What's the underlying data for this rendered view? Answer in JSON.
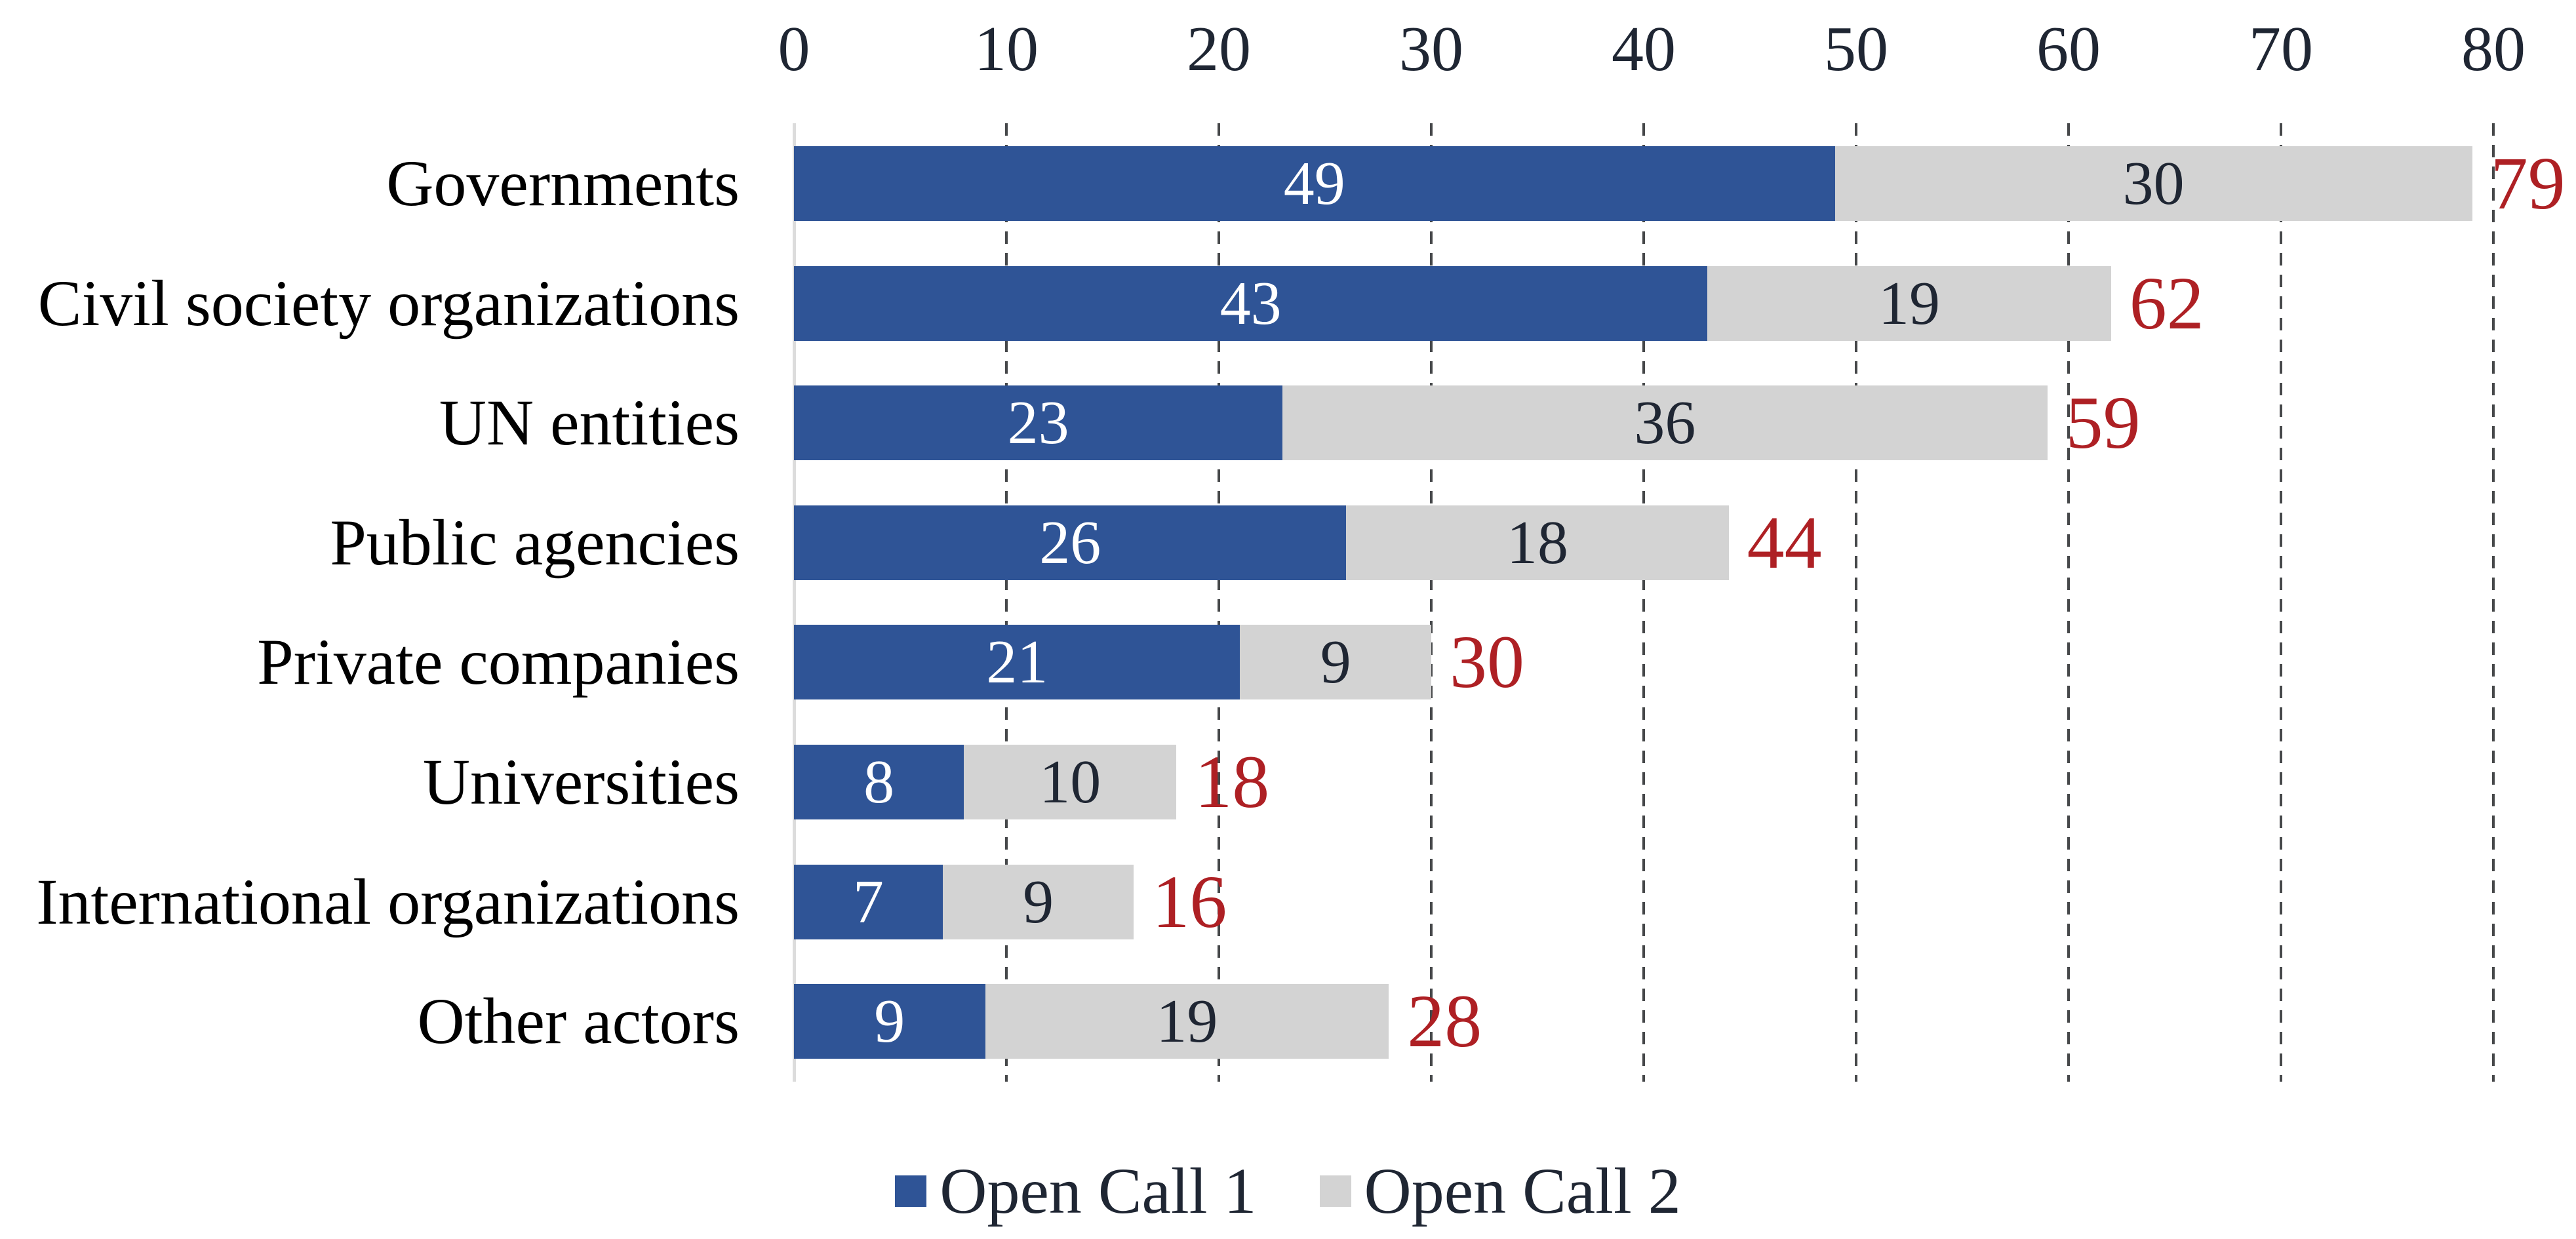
{
  "chart_data": {
    "type": "bar",
    "orientation": "horizontal-stacked",
    "title": "",
    "xlabel": "",
    "ylabel": "",
    "categories": [
      "Governments",
      "Civil society organizations",
      "UN entities",
      "Public agencies",
      "Private companies",
      "Universities",
      "International organizations",
      "Other actors"
    ],
    "series": [
      {
        "name": "Open Call 1",
        "color": "#2F5496",
        "label_color": "#FFFFFF",
        "values": [
          49,
          43,
          23,
          26,
          21,
          8,
          7,
          9
        ]
      },
      {
        "name": "Open Call 2",
        "color": "#D3D3D3",
        "label_color": "#1F2633",
        "values": [
          30,
          19,
          36,
          18,
          9,
          10,
          9,
          19
        ]
      }
    ],
    "totals": [
      79,
      62,
      59,
      44,
      30,
      18,
      16,
      28
    ],
    "axis": {
      "position": "top",
      "min": 0,
      "max": 80,
      "step": 10,
      "tick_labels": [
        "0",
        "10",
        "20",
        "30",
        "40",
        "50",
        "60",
        "70",
        "80"
      ]
    },
    "grid": {
      "style": "dashed-vertical",
      "visible": true
    },
    "legend": {
      "position": "bottom",
      "entries": [
        "Open Call 1",
        "Open Call 2"
      ]
    },
    "colors": {
      "background": "#FFFFFF",
      "tick_text": "#1F2633",
      "category_text": "#000000",
      "total_label": "#AE2024",
      "gridline": "#46484A",
      "axis_line": "#DCDCDC"
    }
  }
}
